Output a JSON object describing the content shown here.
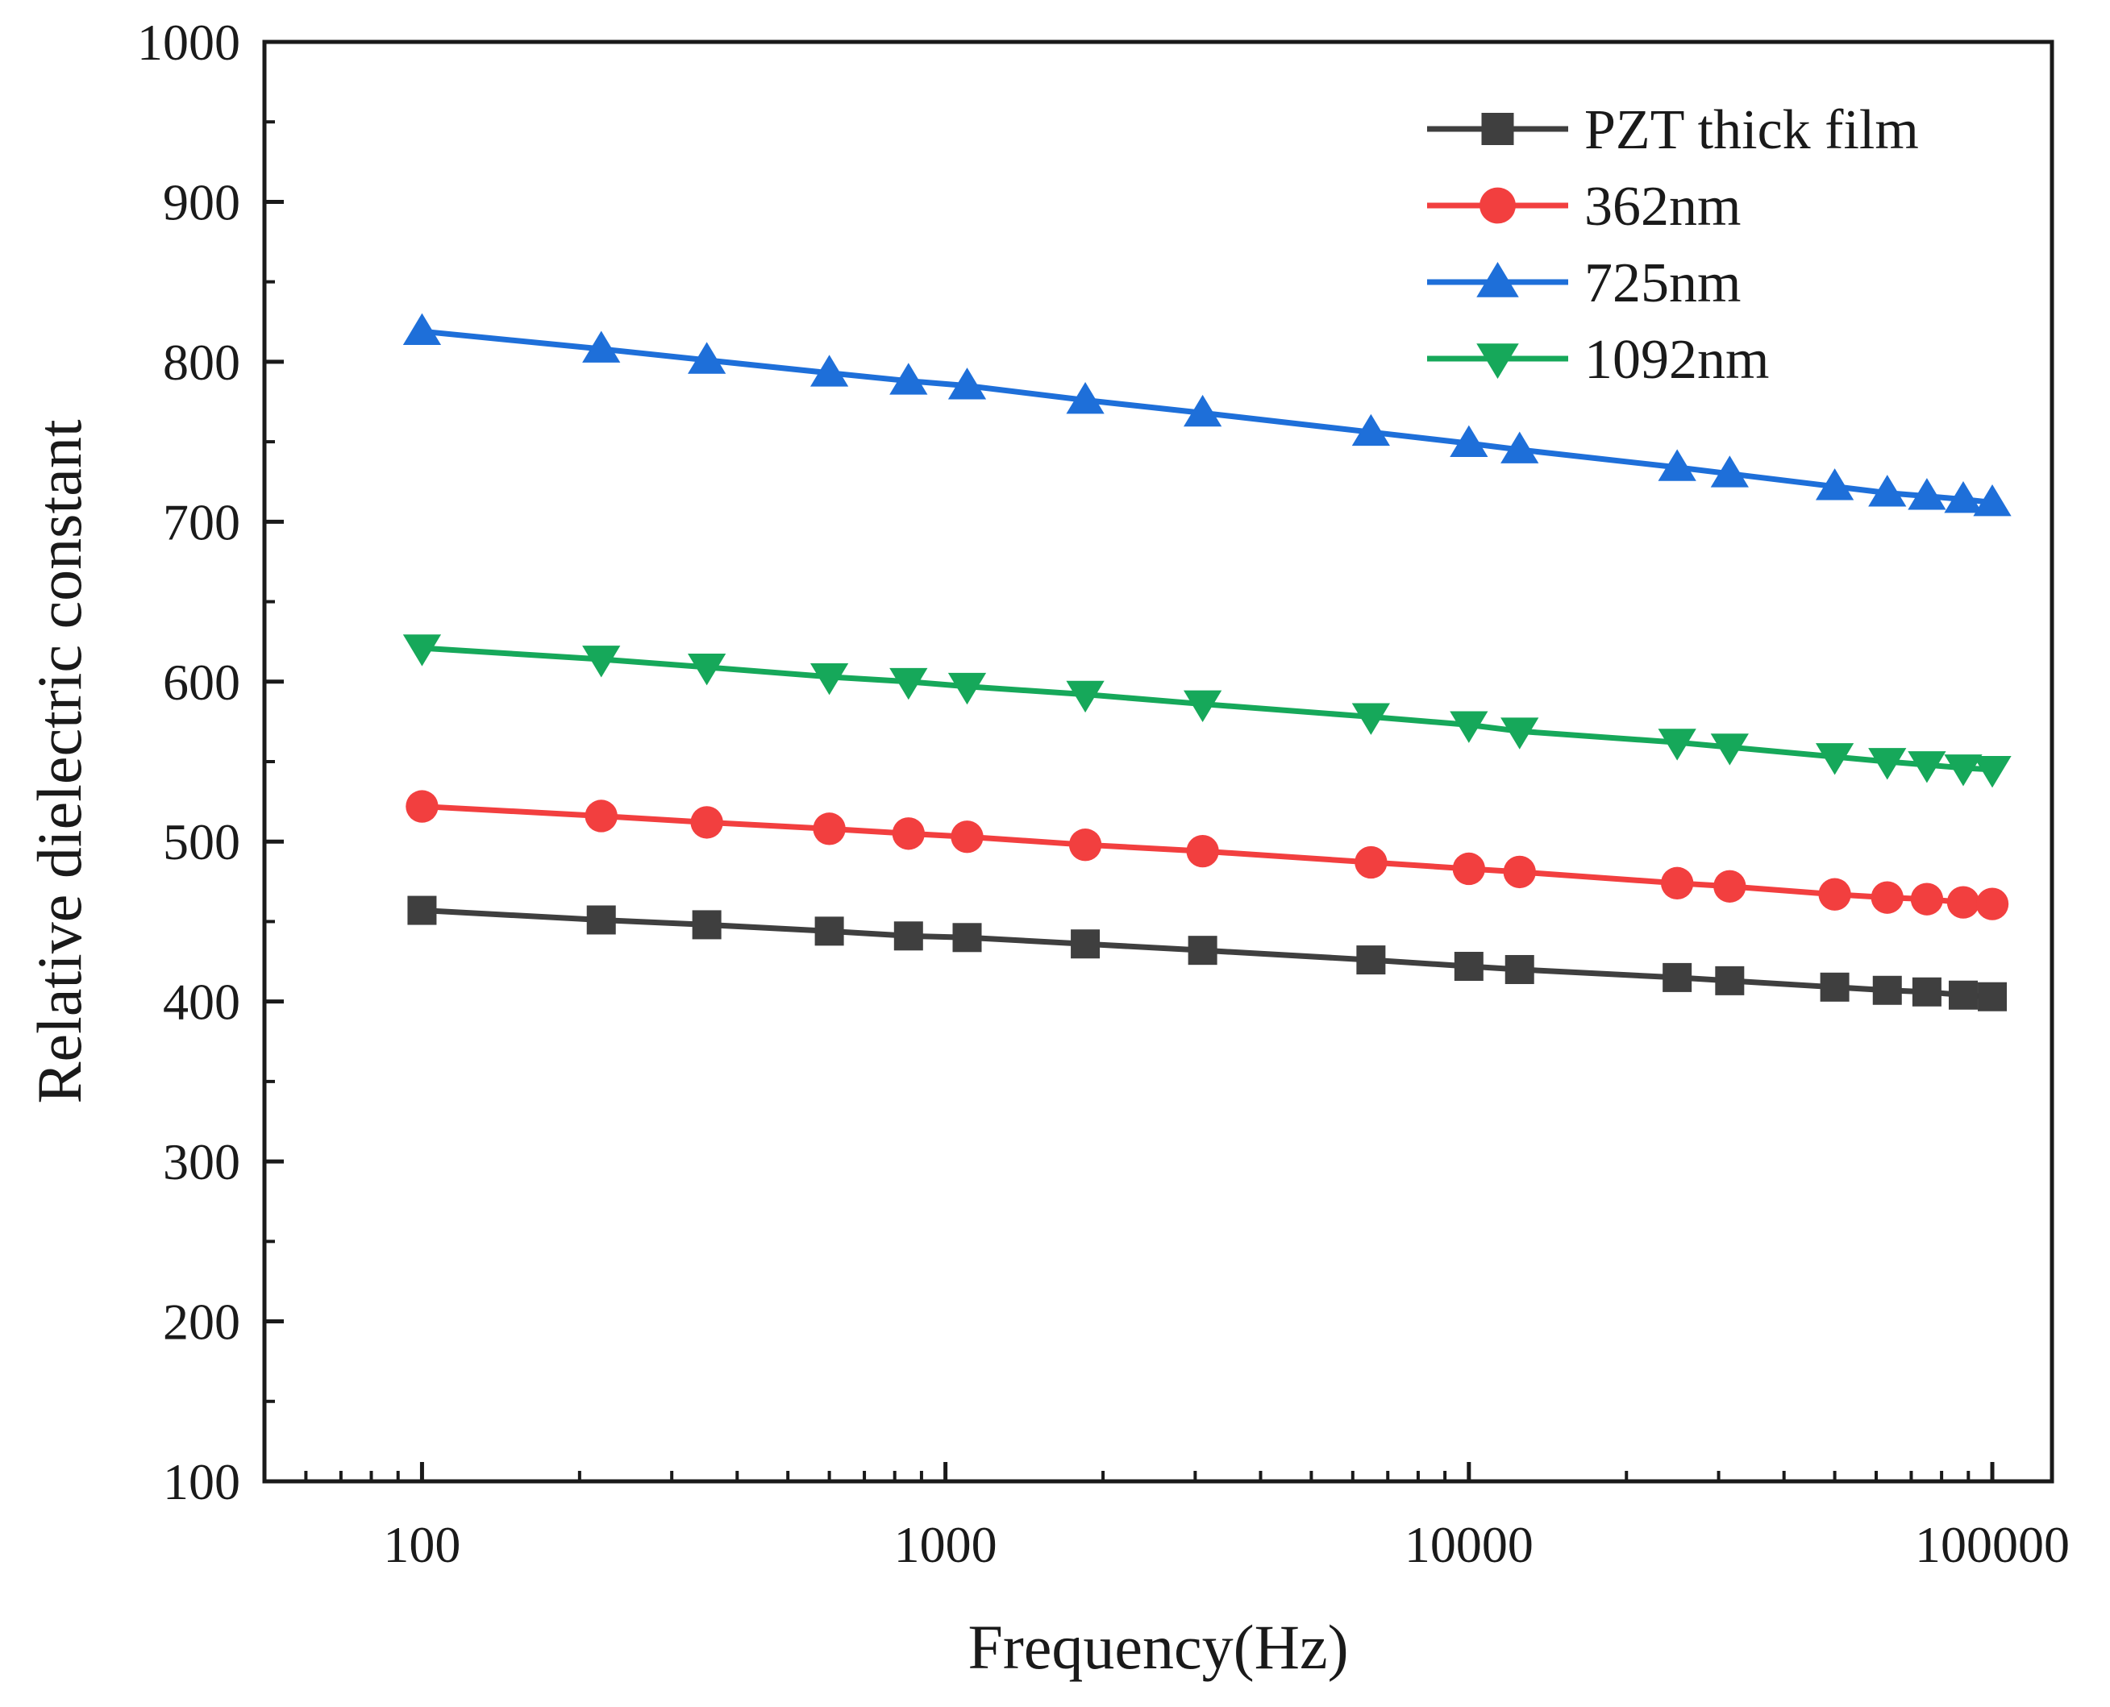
{
  "chart_data": {
    "type": "line",
    "title": "",
    "xlabel": "Frequency(Hz)",
    "ylabel": "Relative dielectric constant",
    "x_scale": "log",
    "xlim": [
      50,
      130000
    ],
    "ylim": [
      100,
      1000
    ],
    "x_ticks": [
      100,
      1000,
      10000,
      100000
    ],
    "x_tick_labels": [
      "100",
      "1000",
      "10000",
      "100000"
    ],
    "y_ticks": [
      100,
      200,
      300,
      400,
      500,
      600,
      700,
      800,
      900,
      1000
    ],
    "y_tick_labels": [
      "100",
      "200",
      "300",
      "400",
      "500",
      "600",
      "700",
      "800",
      "900",
      "1000"
    ],
    "grid": false,
    "legend_position": "top-right",
    "x": [
      100,
      220,
      350,
      600,
      850,
      1100,
      1850,
      3100,
      6500,
      10000,
      12500,
      25000,
      31500,
      50000,
      63000,
      75000,
      88000,
      100000
    ],
    "series": [
      {
        "name": "PZT thick film",
        "color": "#3f3f3f",
        "marker": "square",
        "values": [
          457,
          451,
          448,
          444,
          441,
          440,
          436,
          432,
          426,
          422,
          420,
          415,
          413,
          409,
          407,
          406,
          404,
          403
        ]
      },
      {
        "name": "362nm",
        "color": "#f23f3f",
        "marker": "circle",
        "values": [
          522,
          516,
          512,
          508,
          505,
          503,
          498,
          494,
          487,
          483,
          481,
          474,
          472,
          467,
          465,
          464,
          462,
          461
        ]
      },
      {
        "name": "725nm",
        "color": "#1e6fd9",
        "marker": "triangle-up",
        "values": [
          819,
          808,
          801,
          793,
          788,
          785,
          776,
          768,
          756,
          749,
          745,
          734,
          730,
          722,
          718,
          716,
          714,
          712
        ]
      },
      {
        "name": "1092nm",
        "color": "#16a85a",
        "marker": "triangle-down",
        "values": [
          621,
          614,
          609,
          603,
          600,
          597,
          592,
          586,
          578,
          573,
          569,
          562,
          559,
          553,
          550,
          548,
          546,
          545
        ]
      }
    ]
  }
}
